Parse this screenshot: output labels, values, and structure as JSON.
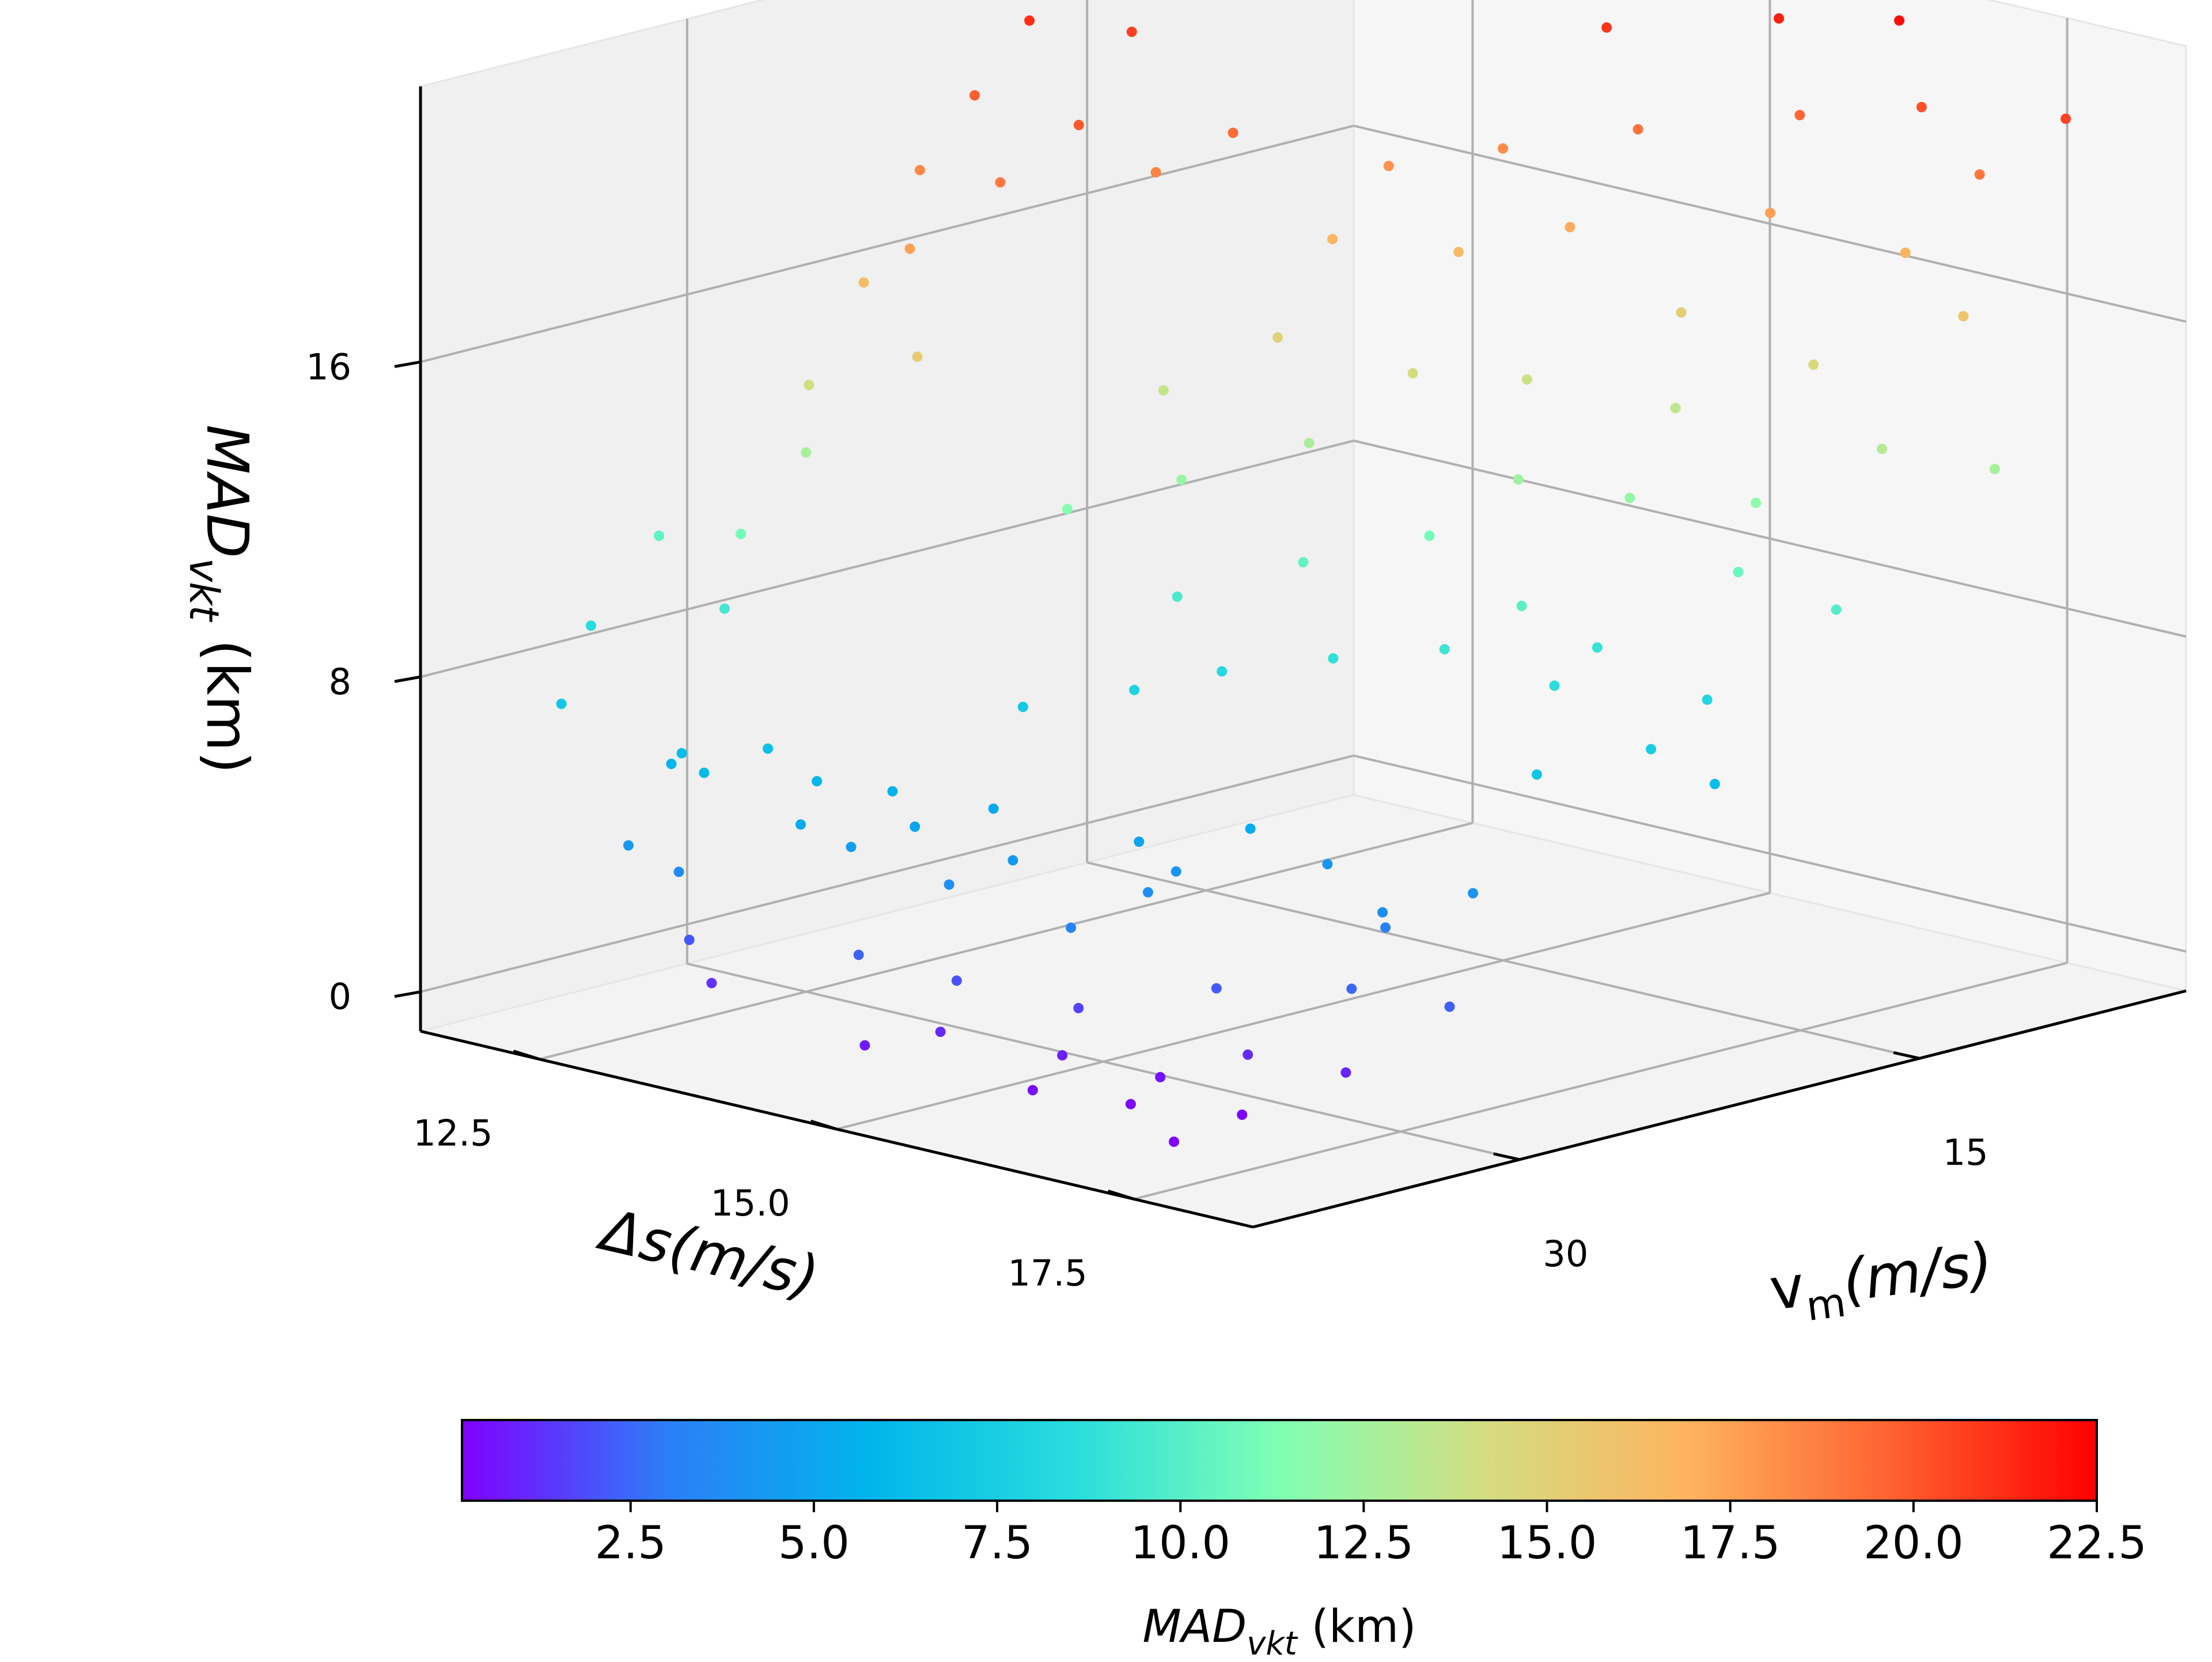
{
  "chart_data": {
    "type": "scatter",
    "projection": "3d",
    "title": "",
    "colormap": "rainbow",
    "colormap_stops": [
      "#8000ff",
      "#2c7ef7",
      "#00b5eb",
      "#2adddd",
      "#80ffb4",
      "#d4dd80",
      "#ffb360",
      "#ff6130",
      "#ff0000"
    ],
    "grid": true,
    "pane_colors": {
      "left": "#f0f0f0",
      "right": "#f6f6f6",
      "floor": "#f3f3f3"
    },
    "x_axis": {
      "label_base": "Δs",
      "label_unit": "(m/s)",
      "ticks": [
        12.5,
        15.0,
        17.5
      ],
      "tick_labels": [
        "12.5",
        "15.0",
        "17.5"
      ],
      "range": [
        11.5,
        18.5
      ]
    },
    "y_axis": {
      "label_base": "v",
      "label_sub": "m",
      "label_unit": "(m/s)",
      "ticks": [
        15,
        30
      ],
      "tick_labels": [
        "15",
        "30"
      ],
      "range": [
        5,
        40
      ]
    },
    "z_axis": {
      "label_base": "MAD",
      "label_sub": "vkt",
      "label_unit": " (km)",
      "ticks": [
        0,
        8,
        16
      ],
      "tick_labels": [
        "0",
        "8",
        "16"
      ],
      "range": [
        -1,
        23
      ]
    },
    "colorbar": {
      "range": [
        0.2,
        22.5
      ],
      "ticks": [
        2.5,
        5.0,
        7.5,
        10.0,
        12.5,
        15.0,
        17.5,
        20.0,
        22.5
      ],
      "tick_labels": [
        "2.5",
        "5.0",
        "7.5",
        "10.0",
        "12.5",
        "15.0",
        "17.5",
        "20.0",
        "22.5"
      ],
      "label_base": "MAD",
      "label_sub": "vkt",
      "label_unit": " (km)"
    },
    "points": [
      {
        "x": 12.8,
        "y": 36.0,
        "z": 6.3
      },
      {
        "x": 12.6,
        "y": 35.5,
        "z": 5.8
      },
      {
        "x": 13.1,
        "y": 36.5,
        "z": 6.1
      },
      {
        "x": 13.3,
        "y": 35.0,
        "z": 6.6
      },
      {
        "x": 13.0,
        "y": 37.0,
        "z": 3.6
      },
      {
        "x": 13.6,
        "y": 34.5,
        "z": 5.9
      },
      {
        "x": 13.8,
        "y": 36.0,
        "z": 5.2
      },
      {
        "x": 13.2,
        "y": 37.5,
        "z": 2.1
      },
      {
        "x": 14.0,
        "y": 35.0,
        "z": 4.6
      },
      {
        "x": 14.2,
        "y": 33.5,
        "z": 5.0
      },
      {
        "x": 13.5,
        "y": 38.0,
        "z": 1.3
      },
      {
        "x": 14.4,
        "y": 36.5,
        "z": 2.4
      },
      {
        "x": 14.6,
        "y": 34.0,
        "z": 3.9
      },
      {
        "x": 14.8,
        "y": 32.5,
        "z": 4.4
      },
      {
        "x": 15.0,
        "y": 35.5,
        "z": 2.0
      },
      {
        "x": 15.2,
        "y": 37.0,
        "z": 1.1
      },
      {
        "x": 14.9,
        "y": 38.5,
        "z": 0.8
      },
      {
        "x": 15.4,
        "y": 33.0,
        "z": 3.2
      },
      {
        "x": 15.6,
        "y": 31.0,
        "z": 3.9
      },
      {
        "x": 15.8,
        "y": 34.5,
        "z": 1.7
      },
      {
        "x": 16.0,
        "y": 36.0,
        "z": 0.9
      },
      {
        "x": 16.2,
        "y": 38.0,
        "z": 0.5
      },
      {
        "x": 15.5,
        "y": 29.5,
        "z": 4.1
      },
      {
        "x": 16.4,
        "y": 32.0,
        "z": 2.2
      },
      {
        "x": 16.6,
        "y": 35.0,
        "z": 0.6
      },
      {
        "x": 16.8,
        "y": 37.0,
        "z": 0.4
      },
      {
        "x": 17.0,
        "y": 33.5,
        "z": 1.2
      },
      {
        "x": 17.2,
        "y": 30.5,
        "z": 2.5
      },
      {
        "x": 17.4,
        "y": 35.5,
        "z": 0.3
      },
      {
        "x": 16.9,
        "y": 28.0,
        "z": 3.8
      },
      {
        "x": 17.6,
        "y": 32.5,
        "z": 1.0
      },
      {
        "x": 17.8,
        "y": 29.5,
        "z": 2.3
      },
      {
        "x": 17.5,
        "y": 38.5,
        "z": 0.2
      },
      {
        "x": 16.1,
        "y": 26.5,
        "z": 4.2
      },
      {
        "x": 16.7,
        "y": 27.0,
        "z": 3.1
      },
      {
        "x": 17.1,
        "y": 25.5,
        "z": 4.0
      },
      {
        "x": 14.3,
        "y": 31.0,
        "z": 5.1
      },
      {
        "x": 13.9,
        "y": 33.0,
        "z": 5.6
      },
      {
        "x": 15.3,
        "y": 30.0,
        "z": 4.8
      },
      {
        "x": 15.9,
        "y": 28.5,
        "z": 5.3
      },
      {
        "x": 14.1,
        "y": 29.0,
        "z": 7.2
      },
      {
        "x": 14.7,
        "y": 27.5,
        "z": 7.8
      },
      {
        "x": 15.1,
        "y": 26.0,
        "z": 8.3
      },
      {
        "x": 15.7,
        "y": 24.5,
        "z": 8.8
      },
      {
        "x": 16.3,
        "y": 23.0,
        "z": 9.2
      },
      {
        "x": 14.5,
        "y": 25.0,
        "z": 9.6
      },
      {
        "x": 15.0,
        "y": 22.5,
        "z": 10.4
      },
      {
        "x": 16.5,
        "y": 21.0,
        "z": 10.1
      },
      {
        "x": 17.0,
        "y": 22.0,
        "z": 8.6
      },
      {
        "x": 17.3,
        "y": 24.0,
        "z": 6.9
      },
      {
        "x": 17.7,
        "y": 21.5,
        "z": 7.4
      },
      {
        "x": 16.8,
        "y": 19.5,
        "z": 9.0
      },
      {
        "x": 17.5,
        "y": 18.5,
        "z": 8.0
      },
      {
        "x": 17.9,
        "y": 20.0,
        "z": 6.4
      },
      {
        "x": 15.5,
        "y": 20.0,
        "z": 11.0
      },
      {
        "x": 14.2,
        "y": 23.5,
        "z": 12.1
      },
      {
        "x": 13.8,
        "y": 26.0,
        "z": 11.5
      },
      {
        "x": 14.6,
        "y": 20.5,
        "z": 12.8
      },
      {
        "x": 15.8,
        "y": 18.0,
        "z": 12.3
      },
      {
        "x": 16.4,
        "y": 16.5,
        "z": 12.0
      },
      {
        "x": 17.2,
        "y": 16.0,
        "z": 10.6
      },
      {
        "x": 17.8,
        "y": 15.0,
        "z": 9.9
      },
      {
        "x": 16.9,
        "y": 14.0,
        "z": 11.8
      },
      {
        "x": 16.0,
        "y": 13.0,
        "z": 13.4
      },
      {
        "x": 15.2,
        "y": 15.0,
        "z": 13.9
      },
      {
        "x": 14.8,
        "y": 17.5,
        "z": 14.2
      },
      {
        "x": 14.0,
        "y": 19.0,
        "z": 14.8
      },
      {
        "x": 13.6,
        "y": 21.5,
        "z": 13.6
      },
      {
        "x": 15.6,
        "y": 11.0,
        "z": 15.2
      },
      {
        "x": 16.6,
        "y": 10.5,
        "z": 14.5
      },
      {
        "x": 17.4,
        "y": 11.5,
        "z": 13.1
      },
      {
        "x": 17.9,
        "y": 9.5,
        "z": 12.6
      },
      {
        "x": 14.4,
        "y": 14.0,
        "z": 16.4
      },
      {
        "x": 13.9,
        "y": 16.5,
        "z": 16.8
      },
      {
        "x": 15.0,
        "y": 12.5,
        "z": 17.2
      },
      {
        "x": 15.9,
        "y": 9.0,
        "z": 17.6
      },
      {
        "x": 16.7,
        "y": 7.5,
        "z": 16.9
      },
      {
        "x": 17.3,
        "y": 8.0,
        "z": 15.8
      },
      {
        "x": 14.1,
        "y": 11.0,
        "z": 18.3
      },
      {
        "x": 13.7,
        "y": 13.5,
        "z": 18.0
      },
      {
        "x": 14.9,
        "y": 9.5,
        "z": 19.1
      },
      {
        "x": 15.7,
        "y": 7.0,
        "z": 19.6
      },
      {
        "x": 16.5,
        "y": 6.0,
        "z": 20.2
      },
      {
        "x": 17.1,
        "y": 6.5,
        "z": 19.0
      },
      {
        "x": 13.4,
        "y": 18.0,
        "z": 19.4
      },
      {
        "x": 13.2,
        "y": 20.0,
        "z": 18.6
      },
      {
        "x": 14.3,
        "y": 8.0,
        "z": 21.0
      },
      {
        "x": 15.3,
        "y": 6.0,
        "z": 21.6
      },
      {
        "x": 16.2,
        "y": 5.5,
        "z": 22.1
      },
      {
        "x": 17.6,
        "y": 5.5,
        "z": 20.6
      },
      {
        "x": 13.0,
        "y": 22.0,
        "z": 20.0
      },
      {
        "x": 12.9,
        "y": 24.5,
        "z": 18.9
      },
      {
        "x": 13.5,
        "y": 10.0,
        "z": 22.4
      },
      {
        "x": 12.7,
        "y": 27.0,
        "z": 17.5
      },
      {
        "x": 13.1,
        "y": 28.5,
        "z": 15.3
      },
      {
        "x": 12.5,
        "y": 30.0,
        "z": 12.7
      },
      {
        "x": 12.4,
        "y": 32.0,
        "z": 10.9
      },
      {
        "x": 12.6,
        "y": 33.5,
        "z": 9.4
      },
      {
        "x": 12.3,
        "y": 29.0,
        "z": 14.1
      },
      {
        "x": 12.2,
        "y": 26.5,
        "z": 16.2
      },
      {
        "x": 12.0,
        "y": 23.5,
        "z": 18.4
      },
      {
        "x": 11.9,
        "y": 21.0,
        "z": 19.8
      },
      {
        "x": 11.8,
        "y": 18.5,
        "z": 21.2
      },
      {
        "x": 12.1,
        "y": 16.0,
        "z": 20.7
      },
      {
        "x": 11.7,
        "y": 34.5,
        "z": 8.5
      },
      {
        "x": 11.9,
        "y": 36.5,
        "z": 7.0
      },
      {
        "x": 11.6,
        "y": 31.5,
        "z": 10.2
      },
      {
        "x": 12.8,
        "y": 38.0,
        "z": 4.3
      }
    ]
  }
}
